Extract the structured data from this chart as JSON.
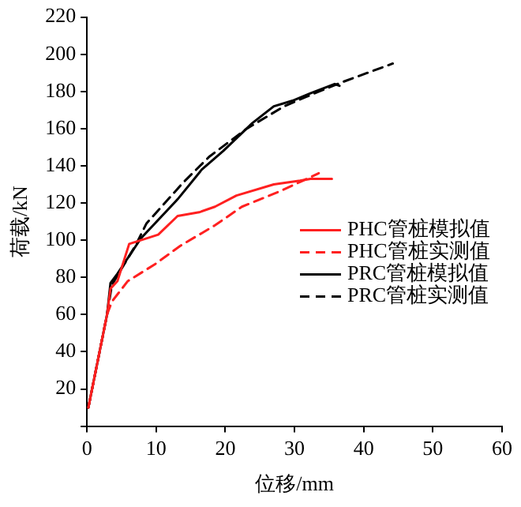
{
  "chart_data": {
    "type": "line",
    "xlabel": "位移/mm",
    "ylabel": "荷载/kN",
    "xlim": [
      0,
      60
    ],
    "xticks": [
      0,
      10,
      20,
      30,
      40,
      50,
      60
    ],
    "ylim": [
      0,
      220
    ],
    "yticks": [
      {
        "value": 0,
        "label": null
      },
      20,
      40,
      60,
      80,
      100,
      120,
      140,
      160,
      180,
      200,
      220
    ],
    "grid": false,
    "legend": "bottom right",
    "marker": "none",
    "series": [
      {
        "name": "PHC管桩模拟值",
        "color": "#ff2020",
        "line_style": "solid",
        "x": [
          0.2,
          2.9,
          3.4,
          4.4,
          6.1,
          10.3,
          13.1,
          16.2,
          18.5,
          21.6,
          27,
          30.8,
          32.3,
          35.4
        ],
        "values": [
          10,
          60,
          74,
          78,
          98,
          103,
          113,
          115,
          118,
          124,
          130,
          132,
          133,
          133
        ]
      },
      {
        "name": "PHC管桩实测值",
        "color": "#ff2020",
        "line_style": "dashed",
        "x": [
          0.2,
          2.9,
          3.6,
          5.9,
          9.8,
          13.5,
          18.5,
          22.4,
          27.7,
          31.2,
          33.5
        ],
        "values": [
          10,
          60,
          67,
          78,
          87,
          97,
          108,
          118,
          126,
          132,
          136
        ]
      },
      {
        "name": "PRC管桩模拟值",
        "color": "#000000",
        "line_style": "solid",
        "x": [
          0.2,
          2.9,
          3.4,
          4.4,
          7.8,
          13.1,
          16.6,
          19.7,
          23.9,
          27,
          29.7,
          32.3,
          35.8,
          36.5
        ],
        "values": [
          10,
          60,
          77,
          82,
          101,
          122,
          138,
          148,
          163,
          172,
          175,
          179,
          184,
          183
        ]
      },
      {
        "name": "PRC管桩实测值",
        "color": "#000000",
        "line_style": "dashed",
        "x": [
          0.2,
          2.9,
          3.6,
          7,
          8.6,
          13.9,
          17.7,
          23.1,
          28.5,
          31.6,
          36.9,
          44.2
        ],
        "values": [
          10,
          60,
          76,
          97,
          109,
          131,
          145,
          160,
          172,
          177,
          185,
          195
        ]
      }
    ]
  }
}
